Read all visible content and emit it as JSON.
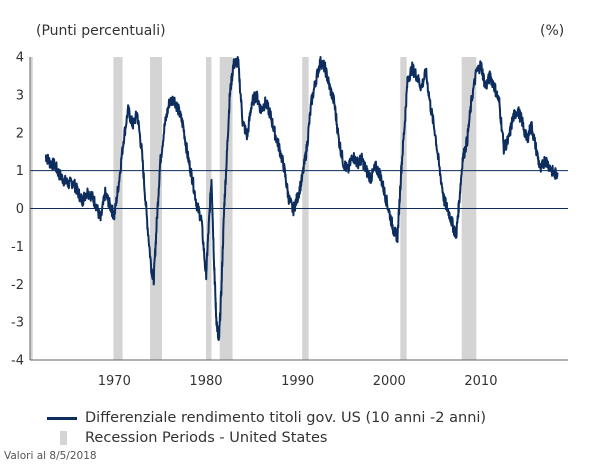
{
  "chart_data": {
    "type": "line",
    "left_unit_label": "(Punti percentuali)",
    "right_unit_label": "(%)",
    "ylim": [
      -4,
      4
    ],
    "y_ticks": [
      "4",
      "3",
      "2",
      "1",
      "0",
      "-1",
      "-2",
      "-3",
      "-4"
    ],
    "xlim": [
      1960.8,
      2019.5
    ],
    "x_ticks": [
      "1970",
      "1980",
      "1990",
      "2000",
      "2010"
    ],
    "reference_lines": [
      1,
      0
    ],
    "recession_periods": [
      [
        1960.3,
        1961.1
      ],
      [
        1969.9,
        1970.9
      ],
      [
        1973.9,
        1975.2
      ],
      [
        1980.0,
        1980.6
      ],
      [
        1981.5,
        1982.9
      ],
      [
        1990.5,
        1991.2
      ],
      [
        2001.2,
        2001.9
      ],
      [
        2007.9,
        2009.5
      ]
    ],
    "series": [
      {
        "name": "Differenziale rendimento titoli gov. US (10 anni -2 anni)",
        "color": "#0c2d5e",
        "points": [
          [
            1962.5,
            1.4
          ],
          [
            1963.0,
            1.2
          ],
          [
            1963.5,
            1.15
          ],
          [
            1964.0,
            0.9
          ],
          [
            1964.5,
            0.75
          ],
          [
            1965.0,
            0.65
          ],
          [
            1965.5,
            0.7
          ],
          [
            1966.0,
            0.45
          ],
          [
            1966.5,
            0.2
          ],
          [
            1967.0,
            0.45
          ],
          [
            1967.5,
            0.35
          ],
          [
            1968.0,
            0.1
          ],
          [
            1968.5,
            -0.3
          ],
          [
            1969.0,
            0.4
          ],
          [
            1969.5,
            0.1
          ],
          [
            1970.0,
            -0.2
          ],
          [
            1970.5,
            0.7
          ],
          [
            1971.0,
            1.8
          ],
          [
            1971.5,
            2.6
          ],
          [
            1972.0,
            2.2
          ],
          [
            1972.5,
            2.5
          ],
          [
            1973.0,
            1.5
          ],
          [
            1973.5,
            -0.1
          ],
          [
            1974.0,
            -1.5
          ],
          [
            1974.3,
            -1.9
          ],
          [
            1974.6,
            -0.5
          ],
          [
            1975.0,
            1.2
          ],
          [
            1975.5,
            2.2
          ],
          [
            1976.0,
            2.8
          ],
          [
            1976.5,
            2.9
          ],
          [
            1977.0,
            2.6
          ],
          [
            1977.5,
            2.2
          ],
          [
            1978.0,
            1.4
          ],
          [
            1978.5,
            0.8
          ],
          [
            1979.0,
            0.1
          ],
          [
            1979.5,
            -0.3
          ],
          [
            1980.0,
            -1.8
          ],
          [
            1980.3,
            -0.5
          ],
          [
            1980.6,
            0.8
          ],
          [
            1980.9,
            -1.5
          ],
          [
            1981.1,
            -2.8
          ],
          [
            1981.4,
            -3.6
          ],
          [
            1981.7,
            -2.0
          ],
          [
            1982.0,
            0.1
          ],
          [
            1982.3,
            1.5
          ],
          [
            1982.6,
            3.0
          ],
          [
            1983.0,
            3.8
          ],
          [
            1983.5,
            3.9
          ],
          [
            1984.0,
            2.3
          ],
          [
            1984.5,
            1.9
          ],
          [
            1985.0,
            2.8
          ],
          [
            1985.5,
            3.0
          ],
          [
            1986.0,
            2.6
          ],
          [
            1986.5,
            2.8
          ],
          [
            1987.0,
            2.5
          ],
          [
            1987.5,
            2.0
          ],
          [
            1988.0,
            1.6
          ],
          [
            1988.5,
            1.1
          ],
          [
            1989.0,
            0.3
          ],
          [
            1989.5,
            -0.05
          ],
          [
            1990.0,
            0.3
          ],
          [
            1990.5,
            0.8
          ],
          [
            1991.0,
            1.6
          ],
          [
            1991.5,
            2.8
          ],
          [
            1992.0,
            3.4
          ],
          [
            1992.5,
            3.9
          ],
          [
            1993.0,
            3.7
          ],
          [
            1993.5,
            3.2
          ],
          [
            1994.0,
            2.8
          ],
          [
            1994.5,
            1.8
          ],
          [
            1995.0,
            1.2
          ],
          [
            1995.5,
            1.0
          ],
          [
            1996.0,
            1.4
          ],
          [
            1996.5,
            1.2
          ],
          [
            1997.0,
            1.3
          ],
          [
            1997.5,
            1.0
          ],
          [
            1998.0,
            0.8
          ],
          [
            1998.5,
            1.1
          ],
          [
            1999.0,
            0.9
          ],
          [
            1999.5,
            0.4
          ],
          [
            2000.0,
            -0.1
          ],
          [
            2000.5,
            -0.6
          ],
          [
            2000.9,
            -0.75
          ],
          [
            2001.3,
            1.0
          ],
          [
            2001.7,
            2.3
          ],
          [
            2002.0,
            3.4
          ],
          [
            2002.5,
            3.7
          ],
          [
            2003.0,
            3.5
          ],
          [
            2003.5,
            3.2
          ],
          [
            2004.0,
            3.6
          ],
          [
            2004.5,
            2.7
          ],
          [
            2005.0,
            2.0
          ],
          [
            2005.5,
            1.0
          ],
          [
            2006.0,
            0.2
          ],
          [
            2006.5,
            -0.1
          ],
          [
            2007.0,
            -0.5
          ],
          [
            2007.3,
            -0.7
          ],
          [
            2007.6,
            0.1
          ],
          [
            2008.0,
            1.3
          ],
          [
            2008.5,
            1.8
          ],
          [
            2009.0,
            2.9
          ],
          [
            2009.5,
            3.6
          ],
          [
            2010.0,
            3.8
          ],
          [
            2010.5,
            3.2
          ],
          [
            2011.0,
            3.5
          ],
          [
            2011.5,
            3.2
          ],
          [
            2012.0,
            2.8
          ],
          [
            2012.5,
            1.6
          ],
          [
            2013.0,
            1.8
          ],
          [
            2013.5,
            2.4
          ],
          [
            2014.0,
            2.6
          ],
          [
            2014.5,
            2.3
          ],
          [
            2015.0,
            1.8
          ],
          [
            2015.5,
            2.2
          ],
          [
            2016.0,
            1.6
          ],
          [
            2016.5,
            1.0
          ],
          [
            2017.0,
            1.3
          ],
          [
            2017.5,
            1.1
          ],
          [
            2018.0,
            0.9
          ],
          [
            2018.35,
            0.95
          ]
        ]
      }
    ],
    "legend": [
      "Differenziale rendimento titoli gov. US (10 anni -2 anni)",
      "Recession Periods - United States"
    ],
    "legend_placement": "bottom",
    "footnote": "Valori al 8/5/2018",
    "grid": false
  }
}
